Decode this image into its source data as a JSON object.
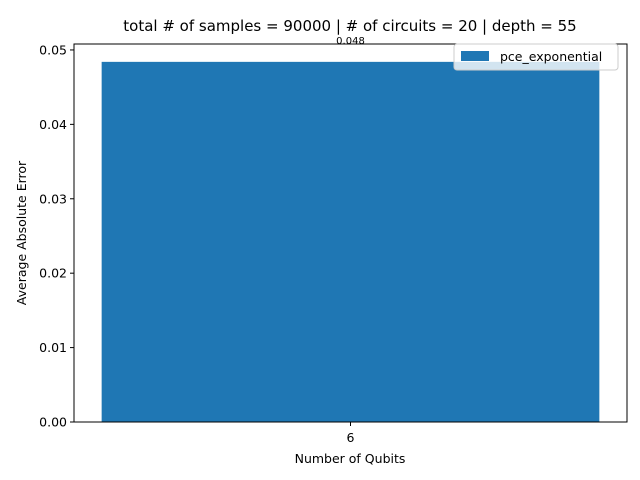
{
  "chart_data": {
    "type": "bar",
    "title": "total # of samples = 90000 | # of circuits = 20 | depth = 55",
    "xlabel": "Number of Qubits",
    "ylabel": "Average Absolute Error",
    "categories": [
      "6"
    ],
    "series": [
      {
        "name": "pce_exponential",
        "values": [
          0.0484
        ],
        "color": "#1f77b4"
      }
    ],
    "data_labels": [
      "0.048"
    ],
    "ylim": [
      0,
      0.0508
    ],
    "yticks": [
      0.0,
      0.01,
      0.02,
      0.03,
      0.04,
      0.05
    ],
    "ytick_labels": [
      "0.00",
      "0.01",
      "0.02",
      "0.03",
      "0.04",
      "0.05"
    ],
    "legend_position": "top-right",
    "grid": false
  }
}
